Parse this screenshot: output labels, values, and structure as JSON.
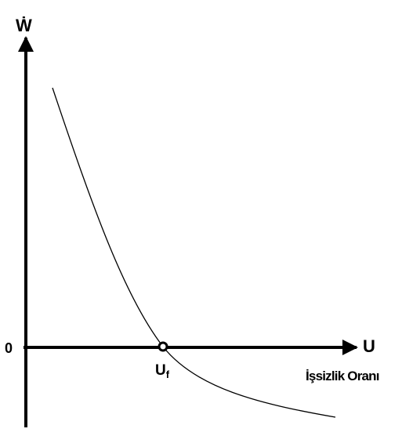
{
  "axes": {
    "y_label": "Ẇ",
    "x_label": "U",
    "origin": "0",
    "x_caption": "İşsizlik Oranı"
  },
  "point": {
    "label": "U",
    "subscript": "f"
  }
}
